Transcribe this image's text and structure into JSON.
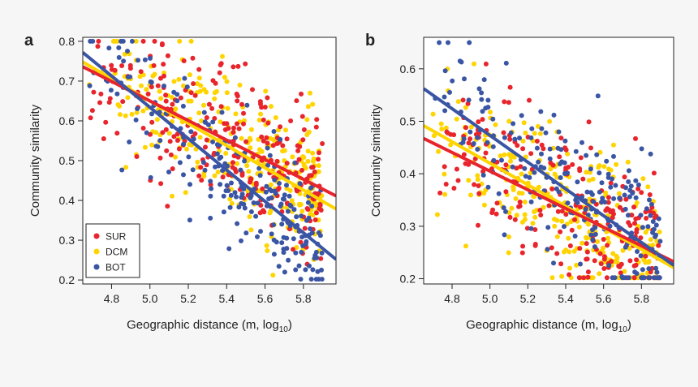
{
  "chart_data": [
    {
      "panel_label": "a",
      "type": "scatter",
      "xlabel_main": "Geographic distance (m, log",
      "xlabel_sub": "10",
      "xlabel_close": ")",
      "ylabel": "Community similarity",
      "xlim": [
        4.65,
        5.97
      ],
      "ylim": [
        0.19,
        0.81
      ],
      "xticks": [
        4.8,
        5.0,
        5.2,
        5.4,
        5.6,
        5.8
      ],
      "xtick_labels": [
        "4.8",
        "5.0",
        "5.2",
        "5.4",
        "5.6",
        "5.8"
      ],
      "yticks": [
        0.2,
        0.3,
        0.4,
        0.5,
        0.6,
        0.7,
        0.8
      ],
      "ytick_labels": [
        "0.2",
        "0.3",
        "0.4",
        "0.5",
        "0.6",
        "0.7",
        "0.8"
      ],
      "legend": {
        "position": "bottom-left",
        "entries": [
          {
            "label": "SUR",
            "color": "#e8242c"
          },
          {
            "label": "DCM",
            "color": "#ffd400"
          },
          {
            "label": "BOT",
            "color": "#3a55a4"
          }
        ]
      },
      "series": [
        {
          "name": "SUR",
          "color": "#e8242c",
          "fit": {
            "intercept": 1.88,
            "slope": -0.246
          },
          "noise_sd": 0.085,
          "n": 260,
          "seed": 11
        },
        {
          "name": "DCM",
          "color": "#ffd400",
          "fit": {
            "intercept": 2.05,
            "slope": -0.28
          },
          "noise_sd": 0.09,
          "n": 300,
          "seed": 23
        },
        {
          "name": "BOT",
          "color": "#3a55a4",
          "fit": {
            "intercept": 2.604,
            "slope": -0.394
          },
          "noise_sd": 0.08,
          "n": 230,
          "seed": 37
        }
      ],
      "draw_order": [
        "DCM",
        "SUR",
        "BOT"
      ]
    },
    {
      "panel_label": "b",
      "type": "scatter",
      "xlabel_main": "Geographic distance (m, log",
      "xlabel_sub": "10",
      "xlabel_close": ")",
      "ylabel": "Community similarity",
      "xlim": [
        4.65,
        5.97
      ],
      "ylim": [
        0.19,
        0.66
      ],
      "xticks": [
        4.8,
        5.0,
        5.2,
        5.4,
        5.6,
        5.8
      ],
      "xtick_labels": [
        "4.8",
        "5.0",
        "5.2",
        "5.4",
        "5.6",
        "5.8"
      ],
      "yticks": [
        0.2,
        0.3,
        0.4,
        0.5,
        0.6
      ],
      "ytick_labels": [
        "0.2",
        "0.3",
        "0.4",
        "0.5",
        "0.6"
      ],
      "series": [
        {
          "name": "SUR",
          "color": "#e8242c",
          "fit": {
            "intercept": 1.295,
            "slope": -0.178
          },
          "noise_sd": 0.07,
          "n": 230,
          "seed": 51
        },
        {
          "name": "DCM",
          "color": "#ffd400",
          "fit": {
            "intercept": 1.445,
            "slope": -0.205
          },
          "noise_sd": 0.07,
          "n": 300,
          "seed": 63
        },
        {
          "name": "BOT",
          "color": "#3a55a4",
          "fit": {
            "intercept": 1.748,
            "slope": -0.255
          },
          "noise_sd": 0.07,
          "n": 220,
          "seed": 79
        }
      ],
      "draw_order": [
        "DCM",
        "SUR",
        "BOT"
      ]
    }
  ]
}
